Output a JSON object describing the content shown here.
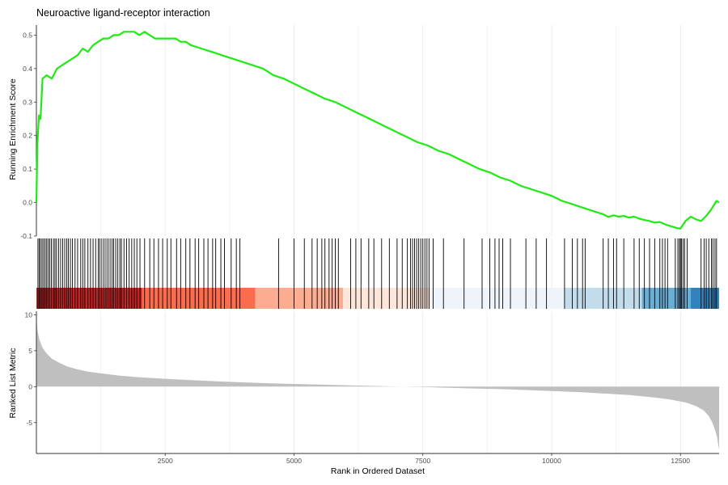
{
  "chart_data": {
    "type": "line",
    "title": "Neuroactive ligand-receptor interaction",
    "xlabel": "Rank in Ordered Dataset",
    "xlim": [
      0,
      13250
    ],
    "x_ticks": [
      2500,
      5000,
      7500,
      10000,
      12500
    ],
    "grid": "vertical",
    "legend": "none",
    "colors": {
      "running_score": "#1eeb12",
      "ranked_fill": "#bfbfbf",
      "hits": "#000000",
      "heat": [
        "#c72423",
        "#e43d2d",
        "#fb6b4d",
        "#fcac91",
        "#fde5da",
        "#eff4fb",
        "#c3dcec",
        "#6aaed6",
        "#3182bd"
      ]
    },
    "running_es": {
      "ylabel": "Running Enrichment Score",
      "ylim": [
        -0.1,
        0.53
      ],
      "y_ticks": [
        -0.1,
        0.0,
        0.1,
        0.2,
        0.3,
        0.4,
        0.5
      ],
      "y_tick_labels": [
        "-0.1",
        "0.0",
        "0.1",
        "0.2",
        "0.3",
        "0.4",
        "0.5"
      ],
      "x": [
        0,
        20,
        50,
        80,
        120,
        200,
        300,
        400,
        500,
        600,
        700,
        800,
        900,
        1000,
        1100,
        1200,
        1300,
        1400,
        1500,
        1600,
        1700,
        1800,
        1900,
        2000,
        2100,
        2200,
        2300,
        2400,
        2500,
        2600,
        2700,
        2800,
        2900,
        3000,
        3200,
        3400,
        3600,
        3800,
        4000,
        4200,
        4400,
        4600,
        4800,
        5000,
        5200,
        5400,
        5600,
        5800,
        6000,
        6200,
        6400,
        6600,
        6800,
        7000,
        7200,
        7400,
        7600,
        7800,
        8000,
        8200,
        8400,
        8600,
        8800,
        9000,
        9200,
        9400,
        9600,
        9800,
        10000,
        10200,
        10400,
        10600,
        10800,
        11000,
        11100,
        11200,
        11300,
        11400,
        11500,
        11600,
        11700,
        11800,
        11900,
        12000,
        12100,
        12200,
        12300,
        12400,
        12500,
        12600,
        12700,
        12800,
        12900,
        13000,
        13100,
        13200,
        13250
      ],
      "y": [
        0.0,
        0.18,
        0.26,
        0.25,
        0.37,
        0.38,
        0.37,
        0.4,
        0.41,
        0.42,
        0.43,
        0.44,
        0.46,
        0.45,
        0.47,
        0.48,
        0.49,
        0.49,
        0.5,
        0.5,
        0.51,
        0.51,
        0.51,
        0.5,
        0.51,
        0.5,
        0.49,
        0.49,
        0.49,
        0.49,
        0.49,
        0.48,
        0.48,
        0.47,
        0.46,
        0.45,
        0.44,
        0.43,
        0.42,
        0.41,
        0.4,
        0.38,
        0.37,
        0.355,
        0.34,
        0.325,
        0.31,
        0.3,
        0.285,
        0.27,
        0.255,
        0.24,
        0.225,
        0.21,
        0.195,
        0.18,
        0.17,
        0.155,
        0.145,
        0.13,
        0.115,
        0.1,
        0.09,
        0.075,
        0.065,
        0.05,
        0.04,
        0.03,
        0.02,
        0.005,
        -0.005,
        -0.015,
        -0.025,
        -0.035,
        -0.043,
        -0.038,
        -0.042,
        -0.04,
        -0.045,
        -0.042,
        -0.048,
        -0.052,
        -0.055,
        -0.06,
        -0.058,
        -0.065,
        -0.07,
        -0.075,
        -0.078,
        -0.055,
        -0.042,
        -0.05,
        -0.055,
        -0.04,
        -0.02,
        0.005,
        0.0
      ]
    },
    "hits": [
      30,
      55,
      80,
      110,
      140,
      170,
      200,
      230,
      260,
      290,
      330,
      360,
      390,
      430,
      470,
      510,
      550,
      590,
      620,
      660,
      700,
      750,
      800,
      860,
      900,
      940,
      1000,
      1050,
      1100,
      1150,
      1200,
      1230,
      1270,
      1310,
      1350,
      1390,
      1430,
      1470,
      1500,
      1540,
      1580,
      1620,
      1650,
      1700,
      1750,
      1800,
      1850,
      1900,
      1950,
      2010,
      2100,
      2200,
      2280,
      2370,
      2450,
      2540,
      2610,
      2720,
      2800,
      2900,
      2980,
      3080,
      3150,
      3250,
      3330,
      3420,
      3480,
      3580,
      3650,
      3780,
      3880,
      3950,
      4700,
      5000,
      5200,
      5350,
      5450,
      5540,
      5600,
      5680,
      5740,
      5800,
      5860,
      6100,
      6200,
      6300,
      6450,
      6550,
      6700,
      6850,
      7000,
      7100,
      7200,
      7260,
      7300,
      7340,
      7380,
      7420,
      7460,
      7500,
      7540,
      7580,
      7620,
      7700,
      7900,
      8300,
      8650,
      8800,
      8900,
      8980,
      9050,
      9200,
      9500,
      9700,
      9900,
      10250,
      10400,
      10500,
      10600,
      10650,
      11000,
      11100,
      11200,
      11260,
      11400,
      11600,
      11700,
      11800,
      11900,
      12000,
      12100,
      12150,
      12200,
      12250,
      12400,
      12450,
      12480,
      12500,
      12520,
      12550,
      12580,
      12630,
      12900,
      12960,
      13000,
      13050,
      13100,
      13130,
      13170,
      13200
    ],
    "heat_bands": [
      {
        "from": 0,
        "to": 2050,
        "color_index": 0
      },
      {
        "from": 2050,
        "to": 4250,
        "color_index": 2
      },
      {
        "from": 4250,
        "to": 5950,
        "color_index": 3
      },
      {
        "from": 5950,
        "to": 7650,
        "color_index": 4
      },
      {
        "from": 7650,
        "to": 10250,
        "color_index": 5
      },
      {
        "from": 10250,
        "to": 11750,
        "color_index": 6
      },
      {
        "from": 11750,
        "to": 12700,
        "color_index": 7
      },
      {
        "from": 12700,
        "to": 13250,
        "color_index": 8
      }
    ],
    "ranked_metric": {
      "ylabel": "Ranked List Metric",
      "ylim": [
        -9.3,
        10.5
      ],
      "y_ticks": [
        -5,
        0,
        5,
        10
      ],
      "y_tick_labels": [
        "-5",
        "0",
        "5",
        "10"
      ],
      "x": [
        0,
        20,
        60,
        120,
        200,
        300,
        450,
        600,
        800,
        1000,
        1300,
        1600,
        2000,
        2500,
        3000,
        3500,
        4000,
        4500,
        5000,
        5500,
        6000,
        6500,
        7000,
        7500,
        8000,
        8500,
        9000,
        9500,
        10000,
        10500,
        11000,
        11500,
        12000,
        12300,
        12600,
        12800,
        12950,
        13050,
        13120,
        13170,
        13210,
        13240,
        13250
      ],
      "y": [
        10.0,
        7.8,
        6.5,
        5.4,
        4.6,
        3.9,
        3.3,
        2.8,
        2.4,
        2.1,
        1.8,
        1.55,
        1.3,
        1.1,
        0.9,
        0.75,
        0.6,
        0.48,
        0.38,
        0.28,
        0.2,
        0.1,
        0.03,
        -0.05,
        -0.15,
        -0.25,
        -0.35,
        -0.47,
        -0.6,
        -0.75,
        -0.95,
        -1.15,
        -1.5,
        -1.8,
        -2.2,
        -2.7,
        -3.3,
        -4.1,
        -5.0,
        -6.0,
        -7.0,
        -8.4,
        -8.7
      ]
    }
  }
}
